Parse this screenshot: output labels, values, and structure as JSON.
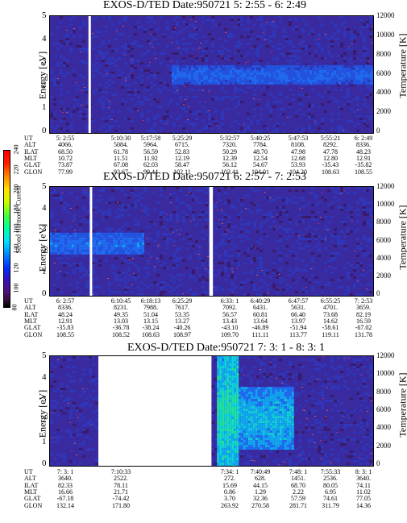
{
  "panels": [
    {
      "title": "EXOS-D/TED   Date:950721  5: 2:55 - 6: 2:49",
      "y_label": "Energy [eV]",
      "y2_label": "Temperature [K]",
      "y_ticks": [
        "5",
        "4",
        "3",
        "2",
        "1",
        "0"
      ],
      "y2_ticks": [
        "12000",
        "10000",
        "8000",
        "6000",
        "4000",
        "2000",
        "0"
      ],
      "orbit": {
        "labels": [
          "UT",
          "ALT",
          "ILAT",
          "MLT",
          "GLAT",
          "GLON"
        ],
        "columns": [
          [
            "5: 2:55",
            "4066.",
            "68.50",
            "10.72",
            "73.87",
            "77.99"
          ],
          [
            "5:10:30",
            "5084.",
            "61.78",
            "11.51",
            "67.08",
            "93.67"
          ],
          [
            "5:17:58",
            "5964.",
            "56.59",
            "11.92",
            "62.03",
            "99.44"
          ],
          [
            "5:25:29",
            "6715.",
            "52.83",
            "12.19",
            "58.47",
            "102.11"
          ],
          [
            "5:32:57",
            "7320.",
            "50.29",
            "12.39",
            "56.12",
            "103.41"
          ],
          [
            "5:40:25",
            "7784.",
            "48.70",
            "12.54",
            "54.67",
            "104.01"
          ],
          [
            "5:47:53",
            "8108.",
            "47.98",
            "12.68",
            "53.93",
            "104.20"
          ],
          [
            "5:55:21",
            "8292.",
            "47.78",
            "12.80",
            "-35.43",
            "108.63"
          ],
          [
            "6: 2:49",
            "8336.",
            "48.23",
            "12.91",
            "-35.82",
            "108.55"
          ]
        ]
      }
    },
    {
      "title": "EXOS-D/TED   Date:950721  6: 2:57 - 7: 2:53",
      "y_label": "Energy [eV]",
      "y2_label": "Temperature [K]",
      "y_ticks": [
        "5",
        "4",
        "3",
        "2",
        "1",
        "0"
      ],
      "y2_ticks": [
        "12000",
        "10000",
        "8000",
        "6000",
        "4000",
        "2000",
        "0"
      ],
      "orbit": {
        "labels": [
          "UT",
          "ALT",
          "ILAT",
          "MLT",
          "GLAT",
          "GLON"
        ],
        "columns": [
          [
            "6: 2:57",
            "8336.",
            "48.24",
            "12.91",
            "-35.83",
            "108.55"
          ],
          [
            "6:10:45",
            "8231.",
            "49.35",
            "13.03",
            "-36.78",
            "108.52"
          ],
          [
            "6:18:13",
            "7988.",
            "51.04",
            "13.15",
            "-38.24",
            "108.63"
          ],
          [
            "6:25:29",
            "7617.",
            "53.35",
            "13.27",
            "-40.26",
            "108.97"
          ],
          [
            "6:33: 1",
            "7092.",
            "56.57",
            "13.43",
            "-43.10",
            "109.70"
          ],
          [
            "6:40:29",
            "6431.",
            "60.81",
            "13.64",
            "-46.89",
            "111.11"
          ],
          [
            "6:47:57",
            "5631.",
            "66.40",
            "13.97",
            "-51.94",
            "113.77"
          ],
          [
            "6:55:25",
            "4701.",
            "73.68",
            "14.62",
            "-58.61",
            "119.11"
          ],
          [
            "7: 2:53",
            "3659.",
            "82.19",
            "16.59",
            "-67.02",
            "131.78"
          ]
        ]
      }
    },
    {
      "title": "EXOS-D/TED   Date:950721  7: 3: 1 - 8: 3: 1",
      "y_label": "Energy [eV]",
      "y2_label": "Temperature [K]",
      "y_ticks": [
        "5",
        "4",
        "3",
        "2",
        "1",
        "0"
      ],
      "y2_ticks": [
        "12000",
        "10000",
        "8000",
        "6000",
        "4000",
        "2000",
        "0"
      ],
      "orbit": {
        "labels": [
          "UT",
          "ALT",
          "ILAT",
          "MLT",
          "GLAT",
          "GLON"
        ],
        "columns": [
          [
            "7: 3: 1",
            "3640.",
            "82.33",
            "16.66",
            "-67.18",
            "132.14"
          ],
          [
            "7:10:33",
            "2522.",
            "78.11",
            "21.71",
            "-74.42",
            "171.80"
          ],
          [
            "",
            "",
            "",
            "",
            "",
            ""
          ],
          [
            "",
            "",
            "",
            "",
            "",
            ""
          ],
          [
            "7:34: 1",
            "272.",
            "15.69",
            "0.86",
            "3.70",
            "263.92"
          ],
          [
            "7:40:49",
            "628.",
            "44.15",
            "1.29",
            "32.36",
            "270.58"
          ],
          [
            "7:48: 1",
            "1451.",
            "68.70",
            "2.22",
            "57.59",
            "281.71"
          ],
          [
            "7:55:33",
            "2536.",
            "80.05",
            "6.95",
            "74.61",
            "311.79"
          ],
          [
            "8: 3: 1",
            "3640.",
            "74.11",
            "11.02",
            "77.05",
            "14.36"
          ]
        ]
      }
    }
  ],
  "colorbar": {
    "label": "Second Harmonic Current",
    "ticks": [
      "240",
      "220",
      "200",
      "180",
      "160",
      "140",
      "120",
      "100",
      "80"
    ]
  },
  "chart_data": [
    {
      "type": "heatmap",
      "title": "EXOS-D/TED   Date:950721  5: 2:55 - 6: 2:49",
      "ylabel": "Energy [eV]",
      "y2label": "Temperature [K]",
      "ylim": [
        0,
        5
      ],
      "y2lim": [
        0,
        12000
      ],
      "x_ticks": [
        "5: 2:55",
        "5:10:30",
        "5:17:58",
        "5:25:29",
        "5:32:57",
        "5:40:25",
        "5:47:53",
        "5:55:21",
        "6: 2:49"
      ],
      "background_level": 100,
      "features": [
        {
          "kind": "data-gap",
          "t_start": "5:10:03",
          "t_end": "5:10:30"
        },
        {
          "kind": "band",
          "t_start": "5:25:29",
          "t_end": "6: 2:49",
          "e_low": 2.1,
          "e_high": 2.9,
          "level": 130
        }
      ]
    },
    {
      "type": "heatmap",
      "title": "EXOS-D/TED   Date:950721  6: 2:57 - 7: 2:53",
      "ylabel": "Energy [eV]",
      "y2label": "Temperature [K]",
      "ylim": [
        0,
        5
      ],
      "y2lim": [
        0,
        12000
      ],
      "x_ticks": [
        "6: 2:57",
        "6:10:45",
        "6:18:13",
        "6:25:29",
        "6:33: 1",
        "6:40:29",
        "6:47:57",
        "6:55:25",
        "7: 2:53"
      ],
      "background_level": 100,
      "features": [
        {
          "kind": "band",
          "t_start": "6: 2:57",
          "t_end": "6:20:00",
          "e_low": 1.9,
          "e_high": 2.9,
          "level": 135
        },
        {
          "kind": "data-gap",
          "t_start": "6:10:20",
          "t_end": "6:10:40"
        },
        {
          "kind": "data-gap",
          "t_start": "6:32:30",
          "t_end": "6:33:10"
        }
      ]
    },
    {
      "type": "heatmap",
      "title": "EXOS-D/TED   Date:950721  7: 3: 1 - 8: 3: 1",
      "ylabel": "Energy [eV]",
      "y2label": "Temperature [K]",
      "ylim": [
        0,
        5
      ],
      "y2lim": [
        0,
        12000
      ],
      "x_ticks": [
        "7: 3: 1",
        "7:10:33",
        "7:34: 1",
        "7:40:49",
        "7:48: 1",
        "7:55:33",
        "8: 3: 1"
      ],
      "background_level": 100,
      "features": [
        {
          "kind": "data-gap",
          "t_start": "7:12:00",
          "t_end": "7:33:00"
        },
        {
          "kind": "enhancement",
          "t_start": "7:34: 1",
          "t_end": "7:38:00",
          "e_low": 0,
          "e_high": 5,
          "level": 160
        },
        {
          "kind": "enhancement",
          "t_start": "7:38:00",
          "t_end": "7:48: 1",
          "e_low": 0.8,
          "e_high": 3.6,
          "level": 150
        }
      ]
    }
  ]
}
